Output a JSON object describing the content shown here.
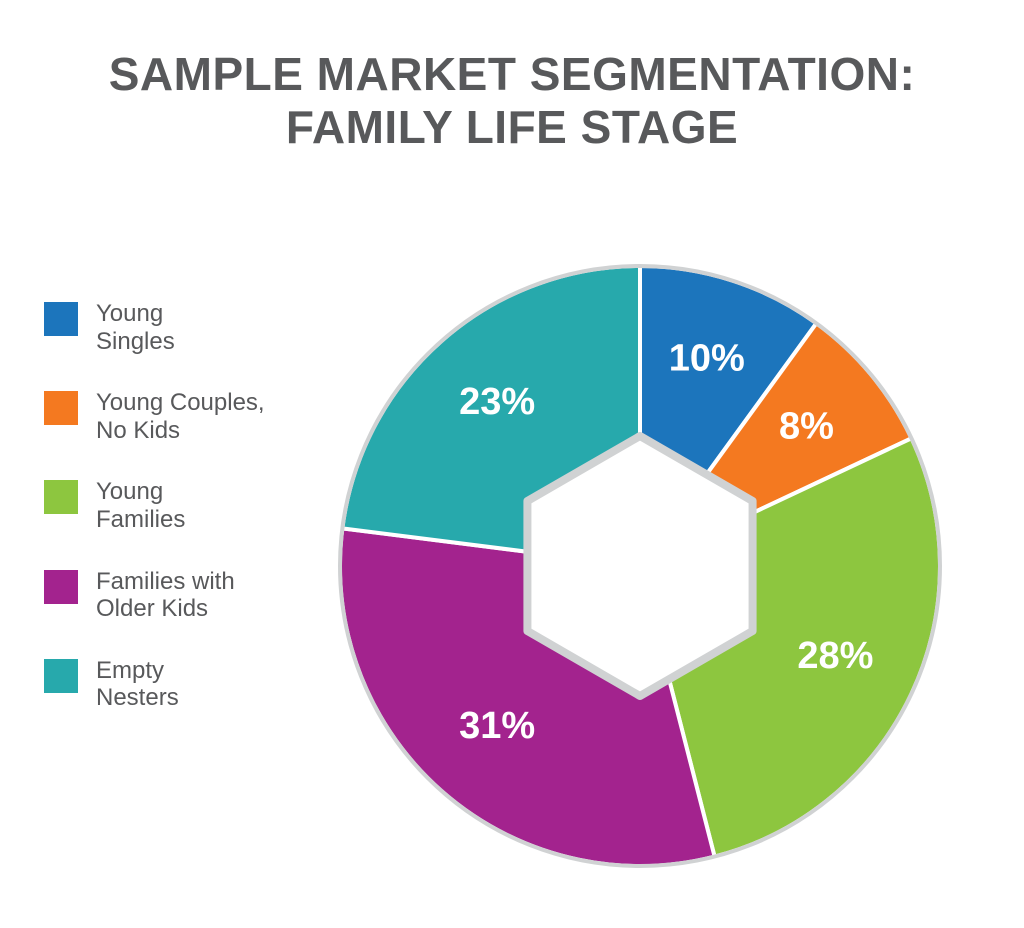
{
  "title_line1": "SAMPLE MARKET SEGMENTATION:",
  "title_line2": "FAMILY LIFE STAGE",
  "title_color": "#58595b",
  "title_fontsize": 46,
  "background_color": "#ffffff",
  "chart": {
    "type": "pie",
    "start_angle_deg": -90,
    "outer_radius": 300,
    "outer_ring_stroke": "#d0d2d3",
    "outer_ring_width": 4,
    "hexagon_hole": true,
    "hexagon_radius": 130,
    "hexagon_stroke": "#d0d2d3",
    "hexagon_stroke_width": 8,
    "hexagon_fill": "#ffffff",
    "slice_gap_color": "#ffffff",
    "slice_gap_width": 4,
    "label_fontsize": 38,
    "label_color": "#ffffff",
    "slices": [
      {
        "label": "Young Singles",
        "value": 10,
        "display": "10%",
        "color": "#1c75bc"
      },
      {
        "label": "Young Couples, No Kids",
        "value": 8,
        "display": "8%",
        "color": "#f47920"
      },
      {
        "label": "Young Families",
        "value": 28,
        "display": "28%",
        "color": "#8dc63f"
      },
      {
        "label": "Families with Older Kids",
        "value": 31,
        "display": "31%",
        "color": "#a3238e"
      },
      {
        "label": "Empty Nesters",
        "value": 23,
        "display": "23%",
        "color": "#27a9ac"
      }
    ]
  },
  "legend": {
    "swatch_size": 34,
    "label_fontsize": 24,
    "label_color": "#58595b",
    "items": [
      {
        "line1": "Young",
        "line2": "Singles",
        "color": "#1c75bc"
      },
      {
        "line1": "Young Couples,",
        "line2": "No Kids",
        "color": "#f47920"
      },
      {
        "line1": "Young",
        "line2": "Families",
        "color": "#8dc63f"
      },
      {
        "line1": "Families with",
        "line2": "Older Kids",
        "color": "#a3238e"
      },
      {
        "line1": "Empty",
        "line2": "Nesters",
        "color": "#27a9ac"
      }
    ]
  }
}
